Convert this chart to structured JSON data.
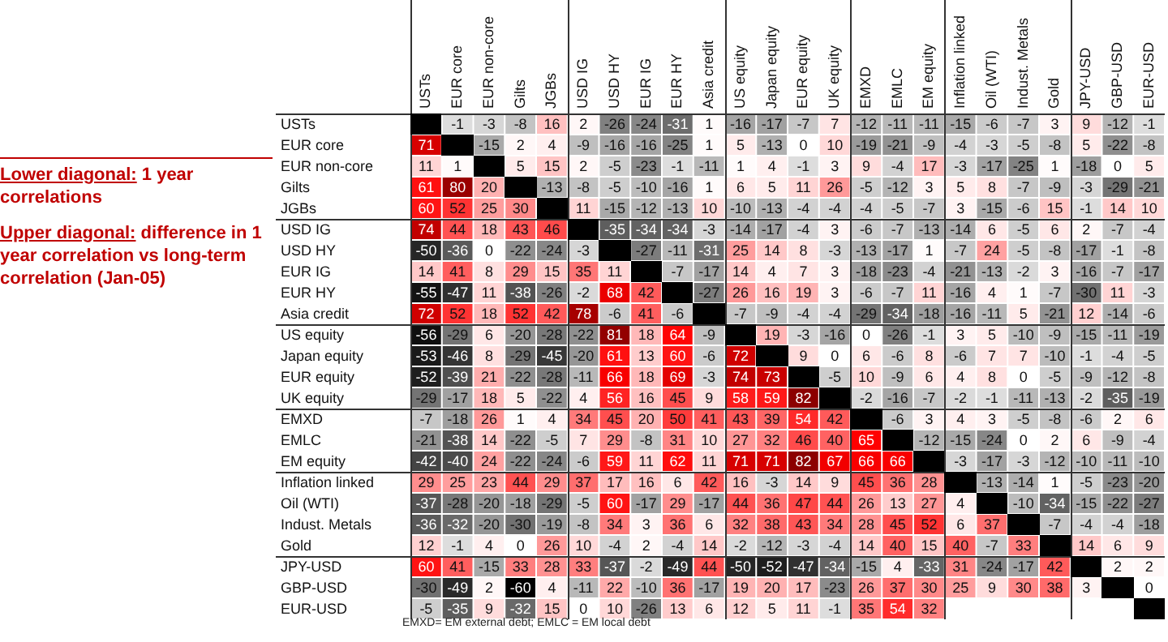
{
  "chart_data": {
    "type": "heatmap",
    "categories": [
      "USTs",
      "EUR core",
      "EUR non-core",
      "Gilts",
      "JGBs",
      "USD IG",
      "USD HY",
      "EUR IG",
      "EUR HY",
      "Asia credit",
      "US equity",
      "Japan equity",
      "EUR equity",
      "UK equity",
      "EMXD",
      "EMLC",
      "EM equity",
      "Inflation linked",
      "Oil (WTI)",
      "Indust. Metals",
      "Gold",
      "JPY-USD",
      "GBP-USD",
      "EUR-USD"
    ],
    "y_categories": [
      "USTs",
      "EUR core",
      "EUR non-core",
      "Gilts",
      "JGBs",
      "USD IG",
      "USD HY",
      "EUR IG",
      "EUR HY",
      "Asia credit",
      "US equity",
      "Japan equity",
      "EUR equity",
      "UK equity",
      "EMXD",
      "EMLC",
      "EM equity",
      "Inflation linked",
      "Oil (WTI)",
      "Indust. Metals",
      "Gold",
      "JPY-USD",
      "GBP-USD",
      "EUR-USD"
    ],
    "cells": [
      [
        null,
        -1,
        -3,
        -8,
        16,
        2,
        -26,
        -24,
        -31,
        1,
        -16,
        -17,
        -7,
        7,
        -12,
        -11,
        -11,
        -15,
        -6,
        -7,
        3,
        9,
        -12,
        -1
      ],
      [
        71,
        null,
        -15,
        2,
        4,
        -9,
        -16,
        -16,
        -25,
        1,
        5,
        -13,
        0,
        10,
        -19,
        -21,
        -9,
        -4,
        -3,
        -5,
        -8,
        5,
        -22,
        -8
      ],
      [
        11,
        1,
        null,
        5,
        15,
        2,
        -5,
        -23,
        -1,
        -11,
        1,
        4,
        -1,
        3,
        9,
        -4,
        17,
        -3,
        -17,
        -25,
        1,
        -18,
        0,
        5
      ],
      [
        61,
        80,
        20,
        null,
        -13,
        -8,
        -5,
        -10,
        -16,
        1,
        6,
        5,
        11,
        26,
        -5,
        -12,
        3,
        5,
        8,
        -7,
        -9,
        -3,
        -29,
        -21
      ],
      [
        60,
        52,
        25,
        30,
        null,
        11,
        -15,
        -12,
        -13,
        10,
        -10,
        -13,
        -4,
        -4,
        -4,
        -5,
        -7,
        3,
        -15,
        -6,
        15,
        -1,
        14,
        10
      ],
      [
        74,
        44,
        18,
        43,
        46,
        null,
        -35,
        -34,
        -34,
        -3,
        -14,
        -17,
        -4,
        3,
        -6,
        -7,
        -13,
        -14,
        6,
        -5,
        6,
        2,
        -7,
        -4
      ],
      [
        -50,
        -36,
        0,
        -22,
        -24,
        -3,
        null,
        -27,
        -11,
        -31,
        25,
        14,
        8,
        -3,
        -13,
        -17,
        1,
        -7,
        24,
        -5,
        -8,
        -17,
        -1,
        -8
      ],
      [
        14,
        41,
        8,
        29,
        15,
        35,
        11,
        null,
        -7,
        -17,
        14,
        4,
        7,
        3,
        -18,
        -23,
        -4,
        -21,
        -13,
        -2,
        3,
        -16,
        -7,
        -17
      ],
      [
        -55,
        -47,
        11,
        -38,
        -26,
        -2,
        68,
        42,
        null,
        -27,
        26,
        16,
        19,
        3,
        -6,
        -7,
        11,
        -16,
        4,
        1,
        -7,
        -30,
        11,
        -3
      ],
      [
        72,
        52,
        18,
        52,
        42,
        78,
        -6,
        41,
        -6,
        null,
        -7,
        -9,
        -4,
        -4,
        -29,
        -34,
        -18,
        -16,
        -11,
        5,
        -21,
        12,
        -14,
        -6
      ],
      [
        -56,
        -29,
        6,
        -20,
        -28,
        -22,
        81,
        18,
        64,
        -9,
        null,
        19,
        -3,
        -16,
        0,
        -26,
        -1,
        3,
        5,
        -10,
        -9,
        -15,
        -11,
        -19
      ],
      [
        -53,
        -46,
        8,
        -29,
        -45,
        -20,
        61,
        13,
        60,
        -6,
        72,
        null,
        9,
        0,
        6,
        -6,
        8,
        -6,
        7,
        7,
        -10,
        -1,
        -4,
        -5
      ],
      [
        -52,
        -39,
        21,
        -22,
        -28,
        -11,
        66,
        18,
        69,
        -3,
        74,
        73,
        null,
        -5,
        10,
        -9,
        6,
        4,
        8,
        0,
        -5,
        -9,
        -12,
        -8
      ],
      [
        -29,
        -17,
        18,
        5,
        -22,
        4,
        56,
        16,
        45,
        9,
        58,
        59,
        82,
        null,
        -2,
        -16,
        -7,
        -2,
        -1,
        -11,
        -13,
        -2,
        -35,
        -19
      ],
      [
        -7,
        -18,
        26,
        1,
        4,
        34,
        45,
        20,
        50,
        41,
        43,
        39,
        54,
        42,
        null,
        -6,
        3,
        4,
        3,
        -5,
        -8,
        -6,
        2,
        6
      ],
      [
        -21,
        -38,
        14,
        -22,
        -5,
        7,
        29,
        -8,
        31,
        10,
        27,
        32,
        46,
        40,
        65,
        null,
        -12,
        -15,
        -24,
        0,
        2,
        6,
        -9,
        -4
      ],
      [
        -42,
        -40,
        24,
        -22,
        -24,
        -6,
        59,
        11,
        62,
        11,
        71,
        71,
        82,
        67,
        66,
        66,
        null,
        -3,
        -17,
        -3,
        -12,
        -10,
        -11,
        -10
      ],
      [
        29,
        25,
        23,
        44,
        29,
        37,
        17,
        16,
        6,
        42,
        16,
        -3,
        14,
        9,
        45,
        36,
        28,
        null,
        -13,
        -14,
        1,
        -5,
        -23,
        -20
      ],
      [
        -37,
        -28,
        -20,
        -18,
        -29,
        -5,
        60,
        -17,
        29,
        -17,
        44,
        36,
        47,
        44,
        26,
        13,
        27,
        4,
        null,
        -10,
        -34,
        -15,
        -22,
        -27
      ],
      [
        -36,
        -32,
        -20,
        -30,
        -19,
        -8,
        34,
        3,
        36,
        6,
        32,
        38,
        43,
        34,
        28,
        45,
        52,
        6,
        37,
        null,
        -7,
        -4,
        -4,
        -18
      ],
      [
        12,
        -1,
        4,
        0,
        26,
        10,
        -4,
        2,
        -4,
        14,
        -2,
        -12,
        -3,
        -4,
        14,
        40,
        15,
        40,
        -7,
        33,
        null,
        14,
        6,
        9
      ],
      [
        60,
        41,
        -15,
        33,
        28,
        33,
        -37,
        -2,
        -49,
        44,
        -50,
        -52,
        -47,
        -34,
        -15,
        4,
        -33,
        31,
        -24,
        -17,
        42,
        null,
        2,
        2
      ],
      [
        -30,
        -49,
        2,
        -60,
        4,
        -11,
        22,
        -10,
        36,
        -17,
        19,
        20,
        17,
        -23,
        26,
        37,
        30,
        25,
        9,
        30,
        38,
        3,
        null,
        0
      ],
      [
        -5,
        -35,
        9,
        -32,
        15,
        0,
        10,
        -26,
        13,
        6,
        12,
        5,
        11,
        -1,
        35,
        54,
        32,
        null,
        null,
        null,
        null,
        null,
        null,
        null
      ]
    ],
    "data_labels": true,
    "annotations": [
      "Lower diagonal: 1 year correlations",
      "Upper diagonal: difference in 1 year correlation vs long-term correlation (Jan-05)",
      "EMXD= EM external debt; EMLC = EM local debt"
    ]
  }
}
